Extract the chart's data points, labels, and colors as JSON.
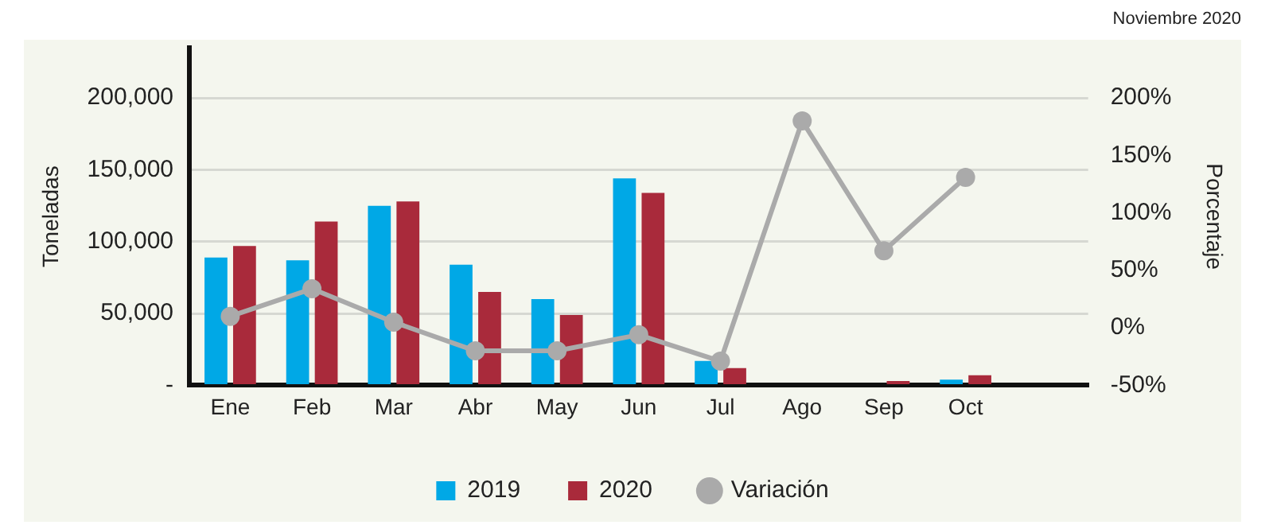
{
  "chart_data": {
    "type": "bar",
    "categories": [
      "Ene",
      "Feb",
      "Mar",
      "Abr",
      "May",
      "Jun",
      "Jul",
      "Ago",
      "Sep",
      "Oct",
      null
    ],
    "ylabel": "Toneladas",
    "y2label": "Porcentaje",
    "series": [
      {
        "name": "2019",
        "color": "#00a8e6",
        "values": [
          89000,
          87000,
          125000,
          84000,
          60000,
          144000,
          17000,
          0,
          0,
          4000,
          null
        ]
      },
      {
        "name": "2020",
        "color": "#a92a3b",
        "values": [
          97000,
          114000,
          128000,
          65000,
          49000,
          134000,
          12000,
          0,
          3000,
          7000,
          null
        ]
      },
      {
        "name": "Variación",
        "type": "line",
        "axis": "y2",
        "color": "#aaaaaa",
        "values": [
          10,
          34,
          5,
          -20,
          -20,
          -6,
          -29,
          180,
          67,
          131,
          null
        ]
      }
    ],
    "ylim": [
      0,
      235000
    ],
    "yticks": [
      {
        "value": 0,
        "label": "-"
      },
      {
        "value": 50000,
        "label": "50,000"
      },
      {
        "value": 100000,
        "label": "100,000"
      },
      {
        "value": 150000,
        "label": "150,000"
      },
      {
        "value": 200000,
        "label": "200,000"
      }
    ],
    "y2lim": [
      -50,
      243.75
    ],
    "y2ticks": [
      {
        "value": -50,
        "label": "-50%"
      },
      {
        "value": 0,
        "label": "0%"
      },
      {
        "value": 50,
        "label": "50%"
      },
      {
        "value": 100,
        "label": "100%"
      },
      {
        "value": 150,
        "label": "150%"
      },
      {
        "value": 200,
        "label": "200%"
      }
    ],
    "grid": "y",
    "legend": "bottom",
    "marker": "circle",
    "annotations": [
      "Noviembre 2020"
    ]
  }
}
